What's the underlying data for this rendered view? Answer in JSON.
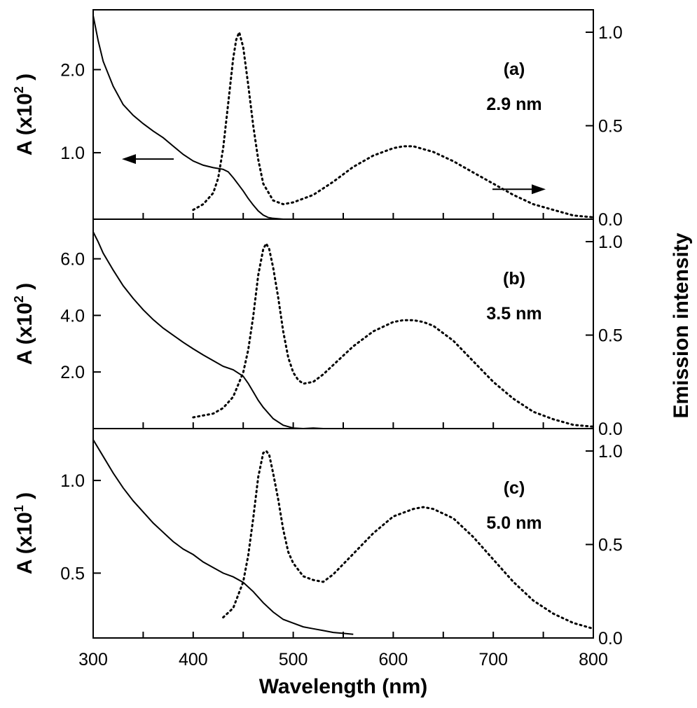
{
  "chart_data": {
    "type": "line",
    "shared_x": {
      "label": "Wavelength (nm)",
      "range": [
        300,
        800
      ],
      "ticks": [
        "300",
        "400",
        "500",
        "600",
        "700",
        "800"
      ]
    },
    "right_axis_label": "Emission intensity",
    "panels": [
      {
        "panel_label": "(a)",
        "size_label": "2.9 nm",
        "left_ylabel": {
          "prefix": "A (x10",
          "exponent": "2",
          "suffix": ")"
        },
        "left_ylim": [
          0.2,
          2.72
        ],
        "left_ticks": [
          "1.0",
          "2.0"
        ],
        "left_tick_values": [
          1.0,
          2.0
        ],
        "right_ylim": [
          0,
          1.12
        ],
        "right_ticks": [
          "0.0",
          "0.5",
          "1.0"
        ],
        "right_tick_values": [
          0.0,
          0.5,
          1.0
        ],
        "arrows": [
          "left",
          "right"
        ],
        "absorption": {
          "x": [
            300,
            305,
            310,
            320,
            330,
            340,
            350,
            360,
            370,
            380,
            390,
            400,
            410,
            420,
            430,
            435,
            440,
            445,
            450,
            455,
            460,
            465,
            470,
            475,
            480,
            490,
            500,
            510,
            520
          ],
          "y": [
            2.65,
            2.35,
            2.1,
            1.8,
            1.58,
            1.45,
            1.35,
            1.26,
            1.18,
            1.08,
            0.98,
            0.9,
            0.85,
            0.82,
            0.8,
            0.77,
            0.7,
            0.62,
            0.54,
            0.45,
            0.37,
            0.3,
            0.25,
            0.22,
            0.21,
            0.2,
            0.2,
            0.2,
            0.2
          ]
        },
        "emission": {
          "x": [
            400,
            410,
            420,
            425,
            430,
            435,
            440,
            443,
            446,
            450,
            455,
            460,
            465,
            470,
            480,
            490,
            500,
            520,
            540,
            560,
            580,
            600,
            610,
            620,
            640,
            660,
            680,
            700,
            720,
            740,
            760,
            780,
            800
          ],
          "y": [
            0.05,
            0.08,
            0.14,
            0.22,
            0.38,
            0.62,
            0.86,
            0.96,
            1.0,
            0.92,
            0.72,
            0.5,
            0.32,
            0.19,
            0.1,
            0.08,
            0.09,
            0.13,
            0.2,
            0.28,
            0.34,
            0.38,
            0.39,
            0.39,
            0.36,
            0.31,
            0.25,
            0.19,
            0.13,
            0.08,
            0.05,
            0.02,
            0.01
          ]
        }
      },
      {
        "panel_label": "(b)",
        "size_label": "3.5 nm",
        "left_ylim": [
          0,
          7.4
        ],
        "left_ylabel": {
          "prefix": "A (x10",
          "exponent": "2",
          "suffix": ")"
        },
        "left_ticks": [
          "2.0",
          "4.0",
          "6.0"
        ],
        "left_tick_values": [
          2.0,
          4.0,
          6.0
        ],
        "right_ylim": [
          0,
          1.12
        ],
        "right_ticks": [
          "0.0",
          "0.5",
          "1.0"
        ],
        "right_tick_values": [
          0.0,
          0.5,
          1.0
        ],
        "absorption": {
          "x": [
            300,
            305,
            310,
            320,
            330,
            340,
            350,
            360,
            370,
            380,
            390,
            400,
            410,
            420,
            430,
            440,
            450,
            455,
            460,
            465,
            470,
            475,
            480,
            490,
            500,
            510,
            520,
            530
          ],
          "y": [
            6.95,
            6.6,
            6.2,
            5.6,
            5.05,
            4.6,
            4.2,
            3.85,
            3.55,
            3.3,
            3.05,
            2.82,
            2.6,
            2.4,
            2.2,
            2.08,
            1.85,
            1.6,
            1.3,
            1.0,
            0.75,
            0.55,
            0.35,
            0.12,
            0.02,
            0.0,
            0.02,
            0.0
          ]
        },
        "emission": {
          "x": [
            400,
            420,
            430,
            440,
            450,
            455,
            460,
            465,
            470,
            473,
            476,
            480,
            485,
            490,
            495,
            500,
            505,
            510,
            520,
            530,
            540,
            560,
            580,
            600,
            610,
            620,
            630,
            640,
            660,
            680,
            700,
            720,
            740,
            760,
            780,
            800
          ],
          "y": [
            0.06,
            0.08,
            0.11,
            0.17,
            0.3,
            0.42,
            0.6,
            0.82,
            0.96,
            0.99,
            0.96,
            0.86,
            0.7,
            0.52,
            0.38,
            0.3,
            0.26,
            0.24,
            0.25,
            0.29,
            0.34,
            0.44,
            0.52,
            0.57,
            0.58,
            0.58,
            0.57,
            0.55,
            0.47,
            0.36,
            0.25,
            0.16,
            0.09,
            0.05,
            0.02,
            0.01
          ]
        }
      },
      {
        "panel_label": "(c)",
        "size_label": "5.0 nm",
        "left_ylim": [
          0.15,
          1.28
        ],
        "left_ylabel": {
          "prefix": "A (x10",
          "exponent": "1",
          "suffix": ")"
        },
        "left_ticks": [
          "0.5",
          "1.0"
        ],
        "left_tick_values": [
          0.5,
          1.0
        ],
        "right_ylim": [
          0,
          1.12
        ],
        "right_ticks": [
          "0.0",
          "0.5",
          "1.0"
        ],
        "right_tick_values": [
          0.0,
          0.5,
          1.0
        ],
        "absorption": {
          "x": [
            300,
            310,
            320,
            330,
            340,
            350,
            360,
            370,
            380,
            390,
            400,
            410,
            420,
            430,
            440,
            450,
            460,
            470,
            480,
            490,
            500,
            510,
            520,
            530,
            540,
            550,
            560
          ],
          "y": [
            1.22,
            1.13,
            1.04,
            0.96,
            0.89,
            0.83,
            0.77,
            0.72,
            0.67,
            0.63,
            0.6,
            0.56,
            0.53,
            0.5,
            0.48,
            0.45,
            0.4,
            0.34,
            0.29,
            0.25,
            0.23,
            0.21,
            0.2,
            0.19,
            0.18,
            0.175,
            0.17
          ]
        },
        "emission": {
          "x": [
            430,
            440,
            450,
            455,
            460,
            465,
            470,
            473,
            476,
            480,
            485,
            490,
            495,
            500,
            510,
            520,
            530,
            540,
            560,
            580,
            600,
            620,
            630,
            640,
            660,
            680,
            700,
            720,
            740,
            760,
            780,
            800
          ],
          "y": [
            0.11,
            0.16,
            0.3,
            0.44,
            0.64,
            0.86,
            0.99,
            1.0,
            0.98,
            0.88,
            0.74,
            0.58,
            0.46,
            0.4,
            0.33,
            0.31,
            0.3,
            0.34,
            0.45,
            0.56,
            0.65,
            0.69,
            0.7,
            0.69,
            0.64,
            0.54,
            0.42,
            0.3,
            0.2,
            0.13,
            0.08,
            0.05
          ]
        }
      }
    ]
  }
}
